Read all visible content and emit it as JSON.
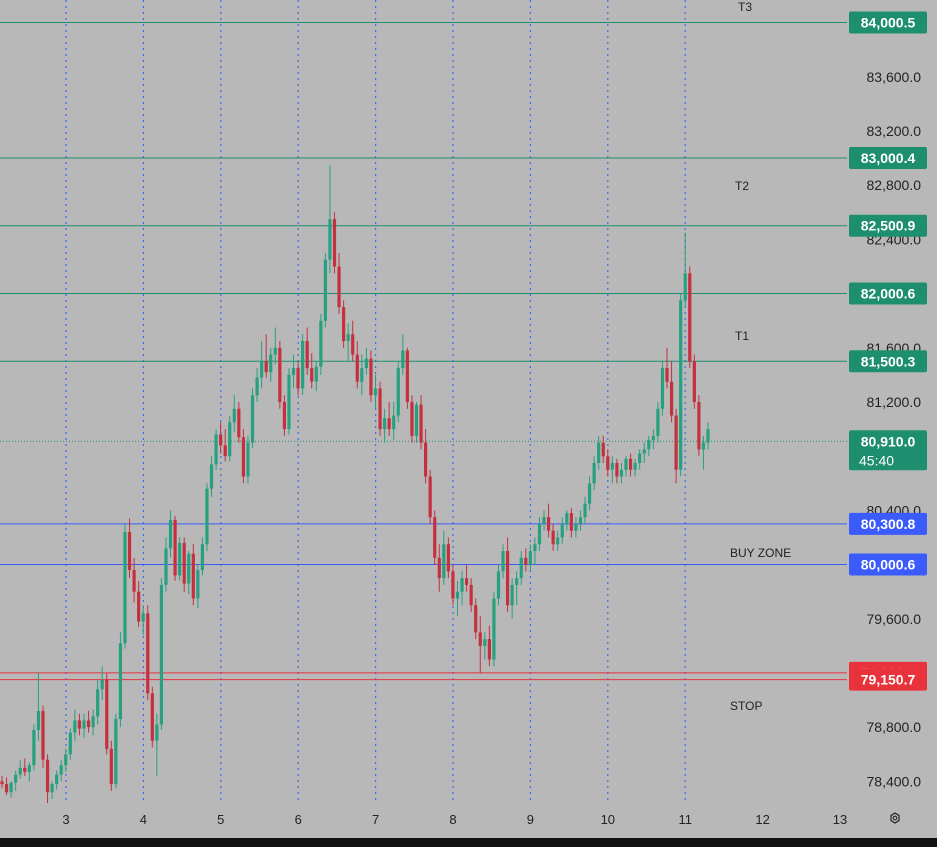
{
  "chart_data": {
    "type": "candlestick",
    "price_axis": {
      "ticks": [
        {
          "value": 83600,
          "label": "83,600.0"
        },
        {
          "value": 83200,
          "label": "83,200.0"
        },
        {
          "value": 82800,
          "label": "82,800.0"
        },
        {
          "value": 82400,
          "label": "82,400.0"
        },
        {
          "value": 81600,
          "label": "81,600.0"
        },
        {
          "value": 81200,
          "label": "81,200.0"
        },
        {
          "value": 80400,
          "label": "80,400.0"
        },
        {
          "value": 79600,
          "label": "79,600.0"
        },
        {
          "value": 78800,
          "label": "78,800.0"
        },
        {
          "value": 78400,
          "label": "78,400.0"
        }
      ]
    },
    "time_axis": {
      "ticks": [
        "3",
        "4",
        "5",
        "6",
        "7",
        "8",
        "9",
        "10",
        "11",
        "12",
        "13"
      ]
    },
    "levels": [
      {
        "price": 84000.5,
        "label": "84,000.5",
        "color": "#1e8f6e"
      },
      {
        "price": 83000.4,
        "label": "83,000.4",
        "color": "#1e8f6e"
      },
      {
        "price": 82500.9,
        "label": "82,500.9",
        "color": "#1e8f6e"
      },
      {
        "price": 82000.6,
        "label": "82,000.6",
        "color": "#1e8f6e"
      },
      {
        "price": 81500.3,
        "label": "81,500.3",
        "color": "#1e8f6e"
      },
      {
        "price": 80300.8,
        "label": "80,300.8",
        "color": "#3b5bfd"
      },
      {
        "price": 80000.6,
        "label": "80,000.6",
        "color": "#3b5bfd"
      },
      {
        "price": 79200.6,
        "label": "79,200.6",
        "color": "#e8323c"
      },
      {
        "price": 79150.7,
        "label": "79,150.7",
        "color": "#e8323c"
      }
    ],
    "annotations": [
      "T3",
      "T2",
      "T1",
      "BUY ZONE",
      "STOP"
    ],
    "current_price": {
      "price": 80910.0,
      "label": "80,910.0",
      "countdown": "45:40",
      "color": "#1e8f6e"
    },
    "bull_color": "#26a17f",
    "bear_color": "#c62f3d",
    "candles": [
      [
        78400,
        78440,
        78350,
        78380
      ],
      [
        78380,
        78430,
        78300,
        78320
      ],
      [
        78320,
        78400,
        78280,
        78390
      ],
      [
        78390,
        78480,
        78330,
        78450
      ],
      [
        78450,
        78560,
        78420,
        78500
      ],
      [
        78500,
        78570,
        78440,
        78470
      ],
      [
        78470,
        78540,
        78400,
        78520
      ],
      [
        78520,
        78820,
        78480,
        78780
      ],
      [
        78780,
        79200,
        78700,
        78920
      ],
      [
        78920,
        78960,
        78500,
        78560
      ],
      [
        78560,
        78600,
        78240,
        78320
      ],
      [
        78320,
        78400,
        78270,
        78380
      ],
      [
        78380,
        78480,
        78340,
        78450
      ],
      [
        78450,
        78560,
        78400,
        78520
      ],
      [
        78520,
        78640,
        78470,
        78600
      ],
      [
        78600,
        78790,
        78560,
        78760
      ],
      [
        78760,
        78930,
        78700,
        78850
      ],
      [
        78850,
        78900,
        78740,
        78790
      ],
      [
        78790,
        78900,
        78720,
        78850
      ],
      [
        78850,
        78920,
        78760,
        78800
      ],
      [
        78800,
        78930,
        78740,
        78880
      ],
      [
        78880,
        79150,
        78820,
        79080
      ],
      [
        79080,
        79250,
        79000,
        79150
      ],
      [
        79150,
        79200,
        78600,
        78640
      ],
      [
        78640,
        78700,
        78330,
        78380
      ],
      [
        78380,
        78900,
        78350,
        78860
      ],
      [
        78860,
        79500,
        78800,
        79420
      ],
      [
        79420,
        80300,
        79380,
        80240
      ],
      [
        80240,
        80340,
        79900,
        79960
      ],
      [
        79960,
        80050,
        79720,
        79800
      ],
      [
        79800,
        79880,
        79540,
        79580
      ],
      [
        79580,
        79700,
        79480,
        79640
      ],
      [
        79640,
        79700,
        79000,
        79050
      ],
      [
        79050,
        79100,
        78650,
        78700
      ],
      [
        78700,
        78900,
        78440,
        78820
      ],
      [
        78820,
        79900,
        78780,
        79850
      ],
      [
        79850,
        80200,
        79800,
        80120
      ],
      [
        80120,
        80400,
        80050,
        80330
      ],
      [
        80330,
        80360,
        79880,
        79920
      ],
      [
        79920,
        80200,
        79880,
        80160
      ],
      [
        80160,
        80200,
        79800,
        79860
      ],
      [
        79860,
        80100,
        79780,
        80080
      ],
      [
        80080,
        80150,
        79700,
        79750
      ],
      [
        79750,
        80000,
        79680,
        79960
      ],
      [
        79960,
        80200,
        79920,
        80150
      ],
      [
        80150,
        80600,
        80100,
        80560
      ],
      [
        80560,
        80800,
        80500,
        80740
      ],
      [
        80740,
        81000,
        80700,
        80960
      ],
      [
        80960,
        81050,
        80820,
        80880
      ],
      [
        80880,
        81000,
        80760,
        80800
      ],
      [
        80800,
        81100,
        80760,
        81050
      ],
      [
        81050,
        81250,
        80980,
        81150
      ],
      [
        81150,
        81200,
        80900,
        80940
      ],
      [
        80940,
        81000,
        80600,
        80650
      ],
      [
        80650,
        80950,
        80600,
        80900
      ],
      [
        80900,
        81300,
        80860,
        81250
      ],
      [
        81250,
        81450,
        81200,
        81380
      ],
      [
        81380,
        81650,
        81300,
        81500
      ],
      [
        81500,
        81700,
        81380,
        81420
      ],
      [
        81420,
        81600,
        81350,
        81550
      ],
      [
        81550,
        81750,
        81480,
        81600
      ],
      [
        81600,
        81650,
        81150,
        81200
      ],
      [
        81200,
        81250,
        80950,
        81000
      ],
      [
        81000,
        81450,
        80960,
        81400
      ],
      [
        81400,
        81550,
        81300,
        81450
      ],
      [
        81450,
        81500,
        81250,
        81300
      ],
      [
        81300,
        81700,
        81250,
        81650
      ],
      [
        81650,
        81750,
        81400,
        81450
      ],
      [
        81450,
        81560,
        81300,
        81350
      ],
      [
        81350,
        81500,
        81280,
        81460
      ],
      [
        81460,
        81850,
        81400,
        81800
      ],
      [
        81800,
        82300,
        81750,
        82250
      ],
      [
        82250,
        82950,
        82150,
        82550
      ],
      [
        82550,
        82600,
        82150,
        82200
      ],
      [
        82200,
        82300,
        81850,
        81900
      ],
      [
        81900,
        81950,
        81600,
        81650
      ],
      [
        81650,
        81780,
        81500,
        81700
      ],
      [
        81700,
        81800,
        81500,
        81550
      ],
      [
        81550,
        81650,
        81300,
        81350
      ],
      [
        81350,
        81550,
        81250,
        81450
      ],
      [
        81450,
        81600,
        81400,
        81520
      ],
      [
        81520,
        81580,
        81200,
        81250
      ],
      [
        81250,
        81400,
        81150,
        81300
      ],
      [
        81300,
        81350,
        80950,
        81000
      ],
      [
        81000,
        81150,
        80900,
        81080
      ],
      [
        81080,
        81200,
        80950,
        81000
      ],
      [
        81000,
        81200,
        80920,
        81100
      ],
      [
        81100,
        81500,
        81050,
        81450
      ],
      [
        81450,
        81700,
        81400,
        81580
      ],
      [
        81580,
        81600,
        81150,
        81200
      ],
      [
        81200,
        81250,
        80900,
        80950
      ],
      [
        80950,
        81200,
        80900,
        81180
      ],
      [
        81180,
        81250,
        80850,
        80900
      ],
      [
        80900,
        81000,
        80600,
        80650
      ],
      [
        80650,
        80700,
        80300,
        80350
      ],
      [
        80350,
        80400,
        80000,
        80050
      ],
      [
        80050,
        80150,
        79800,
        79900
      ],
      [
        79900,
        80250,
        79850,
        80150
      ],
      [
        80150,
        80200,
        79900,
        79950
      ],
      [
        79950,
        80000,
        79700,
        79750
      ],
      [
        79750,
        79880,
        79620,
        79800
      ],
      [
        79800,
        79950,
        79700,
        79900
      ],
      [
        79900,
        80000,
        79800,
        79850
      ],
      [
        79850,
        79900,
        79650,
        79700
      ],
      [
        79700,
        79750,
        79450,
        79500
      ],
      [
        79500,
        79620,
        79200,
        79400
      ],
      [
        79400,
        79500,
        79300,
        79450
      ],
      [
        79450,
        79550,
        79250,
        79300
      ],
      [
        79300,
        79800,
        79250,
        79750
      ],
      [
        79750,
        80000,
        79700,
        79950
      ],
      [
        79950,
        80150,
        79900,
        80100
      ],
      [
        80100,
        80200,
        79650,
        79700
      ],
      [
        79700,
        79900,
        79600,
        79850
      ],
      [
        79850,
        79950,
        79700,
        79900
      ],
      [
        79900,
        80100,
        79850,
        80050
      ],
      [
        80050,
        80120,
        79950,
        80000
      ],
      [
        80000,
        80150,
        79960,
        80100
      ],
      [
        80100,
        80200,
        80000,
        80150
      ],
      [
        80150,
        80350,
        80100,
        80300
      ],
      [
        80300,
        80400,
        80250,
        80350
      ],
      [
        80350,
        80450,
        80200,
        80250
      ],
      [
        80250,
        80300,
        80100,
        80150
      ],
      [
        80150,
        80250,
        80100,
        80200
      ],
      [
        80200,
        80350,
        80150,
        80300
      ],
      [
        80300,
        80400,
        80250,
        80380
      ],
      [
        80380,
        80420,
        80200,
        80250
      ],
      [
        80250,
        80350,
        80200,
        80300
      ],
      [
        80300,
        80400,
        80250,
        80350
      ],
      [
        80350,
        80500,
        80300,
        80450
      ],
      [
        80450,
        80650,
        80400,
        80600
      ],
      [
        80600,
        80800,
        80550,
        80750
      ],
      [
        80750,
        80950,
        80700,
        80900
      ],
      [
        80900,
        80950,
        80750,
        80800
      ],
      [
        80800,
        80850,
        80650,
        80700
      ],
      [
        80700,
        80800,
        80600,
        80750
      ],
      [
        80750,
        80780,
        80600,
        80650
      ],
      [
        80650,
        80750,
        80600,
        80700
      ],
      [
        80700,
        80800,
        80650,
        80780
      ],
      [
        80780,
        80820,
        80650,
        80700
      ],
      [
        80700,
        80780,
        80650,
        80750
      ],
      [
        80750,
        80850,
        80700,
        80820
      ],
      [
        80820,
        80900,
        80750,
        80850
      ],
      [
        80850,
        80950,
        80800,
        80920
      ],
      [
        80920,
        81000,
        80850,
        80950
      ],
      [
        80950,
        81200,
        80900,
        81150
      ],
      [
        81150,
        81500,
        81100,
        81450
      ],
      [
        81450,
        81600,
        81300,
        81350
      ],
      [
        81350,
        81500,
        81050,
        81100
      ],
      [
        81100,
        81150,
        80600,
        80700
      ],
      [
        80700,
        82000,
        80650,
        81950
      ],
      [
        81950,
        82450,
        81900,
        82150
      ],
      [
        82150,
        82200,
        81450,
        81500
      ],
      [
        81500,
        81550,
        81150,
        81200
      ],
      [
        81200,
        81250,
        80800,
        80850
      ],
      [
        80850,
        80950,
        80700,
        80900
      ],
      [
        80900,
        81050,
        80850,
        81000
      ]
    ]
  }
}
